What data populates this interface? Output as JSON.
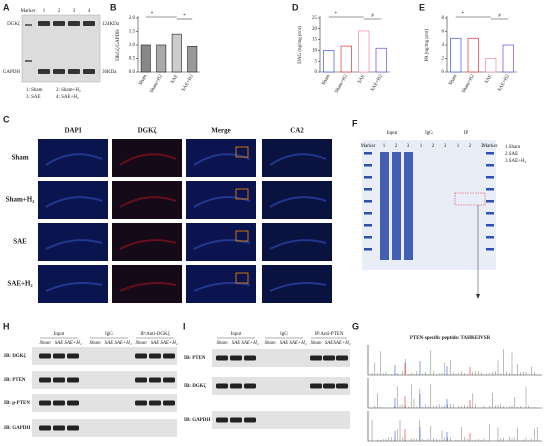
{
  "panels": {
    "A": {
      "label": "A",
      "marker": "Marker",
      "lanes": [
        "1",
        "2",
        "3",
        "4"
      ],
      "bands": [
        {
          "name": "DGKζ",
          "size": "124KDa"
        },
        {
          "name": "GAPDH",
          "size": "36KDa"
        }
      ],
      "legend": [
        "1: Sham",
        "2: Sham+H₂",
        "3: SAE",
        "4: SAE+H₂"
      ]
    },
    "C": {
      "label": "C",
      "columns": [
        "DAPI",
        "DGKζ",
        "Merge",
        "CA2"
      ],
      "rows": [
        "Sham",
        "Sham+H₂",
        "SAE",
        "SAE+H₂"
      ]
    },
    "F": {
      "label": "F",
      "marker": "Marker",
      "groups": [
        "Input",
        "IgG",
        "IP"
      ],
      "lanes": [
        "1",
        "2",
        "3"
      ],
      "legend": [
        "1.Sham",
        "2.SAE",
        "3.SAE+H₂"
      ]
    },
    "G": {
      "label": "G",
      "title": "PTEN-specific peptide: TAHKEIVSR"
    },
    "H": {
      "label": "H",
      "groups": [
        "Input",
        "IgG",
        "IP:Anti-DGKζ"
      ],
      "lanes": [
        "Sham",
        "SAE",
        "SAE+H₂"
      ],
      "rows": [
        "IB: DGKζ",
        "IB: PTEN",
        "IB: p-PTEN",
        "IB: GAPDH"
      ]
    },
    "I": {
      "label": "I",
      "groups": [
        "Input",
        "IgG",
        "IP:Anti-PTEN"
      ],
      "lanes": [
        "Sham",
        "SAE",
        "SAE+H₂"
      ],
      "rows": [
        "IB: PTEN",
        "IB: DGKζ",
        "IB: GAPDH"
      ]
    }
  },
  "chart_data": [
    {
      "type": "bar",
      "label": "B",
      "ylabel": "DKGζ/GAPDH",
      "categories": [
        "Sham",
        "Sham+H2",
        "SAE",
        "SAE+H2"
      ],
      "values": [
        1.0,
        1.0,
        1.4,
        0.95
      ],
      "colors": [
        "#888888",
        "#aaaaaa",
        "#cccccc",
        "#999999"
      ],
      "style": "filled",
      "ylim": [
        0,
        2
      ],
      "yticks": [
        {
          "value": 0,
          "label": "0.0"
        },
        {
          "value": 0.5,
          "label": "0.5"
        },
        {
          "value": 1,
          "label": "1.0"
        },
        {
          "value": 1.5,
          "label": "1.5"
        },
        {
          "value": 2,
          "label": "2.0"
        }
      ],
      "annotations": [
        "*",
        "*"
      ]
    },
    {
      "type": "bar",
      "label": "D",
      "ylabel": "DAG (ng/mg prot)",
      "categories": [
        "Sham",
        "Sham+H2",
        "SAE",
        "SAE+H2"
      ],
      "values": [
        10,
        12,
        19,
        11
      ],
      "colors": [
        "#3b5bdb",
        "#e03131",
        "#f783ac",
        "#7048e8"
      ],
      "style": "outline",
      "ylim": [
        0,
        25
      ],
      "yticks": [
        0,
        5,
        10,
        15,
        20,
        25
      ],
      "annotations": [
        "*",
        "#"
      ]
    },
    {
      "type": "bar",
      "label": "E",
      "ylabel": "PA (ng/mg prot)",
      "categories": [
        "Sham",
        "Sham+H2",
        "SAE",
        "SAE+H2"
      ],
      "values": [
        5,
        5,
        2,
        4
      ],
      "colors": [
        "#3b5bdb",
        "#e03131",
        "#f783ac",
        "#7048e8"
      ],
      "style": "outline",
      "ylim": [
        0,
        8
      ],
      "yticks": [
        0,
        2,
        4,
        6,
        8
      ],
      "annotations": [
        "*",
        "#"
      ]
    }
  ]
}
